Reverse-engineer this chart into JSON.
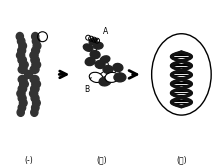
{
  "bg_color": "#ffffff",
  "fg_color": "#000000",
  "chrom_color": "#333333",
  "label_A": "A",
  "label_B": "B",
  "panel1_label": "(-)",
  "panel2_label": "(二)",
  "panel3_label": "(三)",
  "fig_width": 2.15,
  "fig_height": 1.67,
  "dpi": 100
}
